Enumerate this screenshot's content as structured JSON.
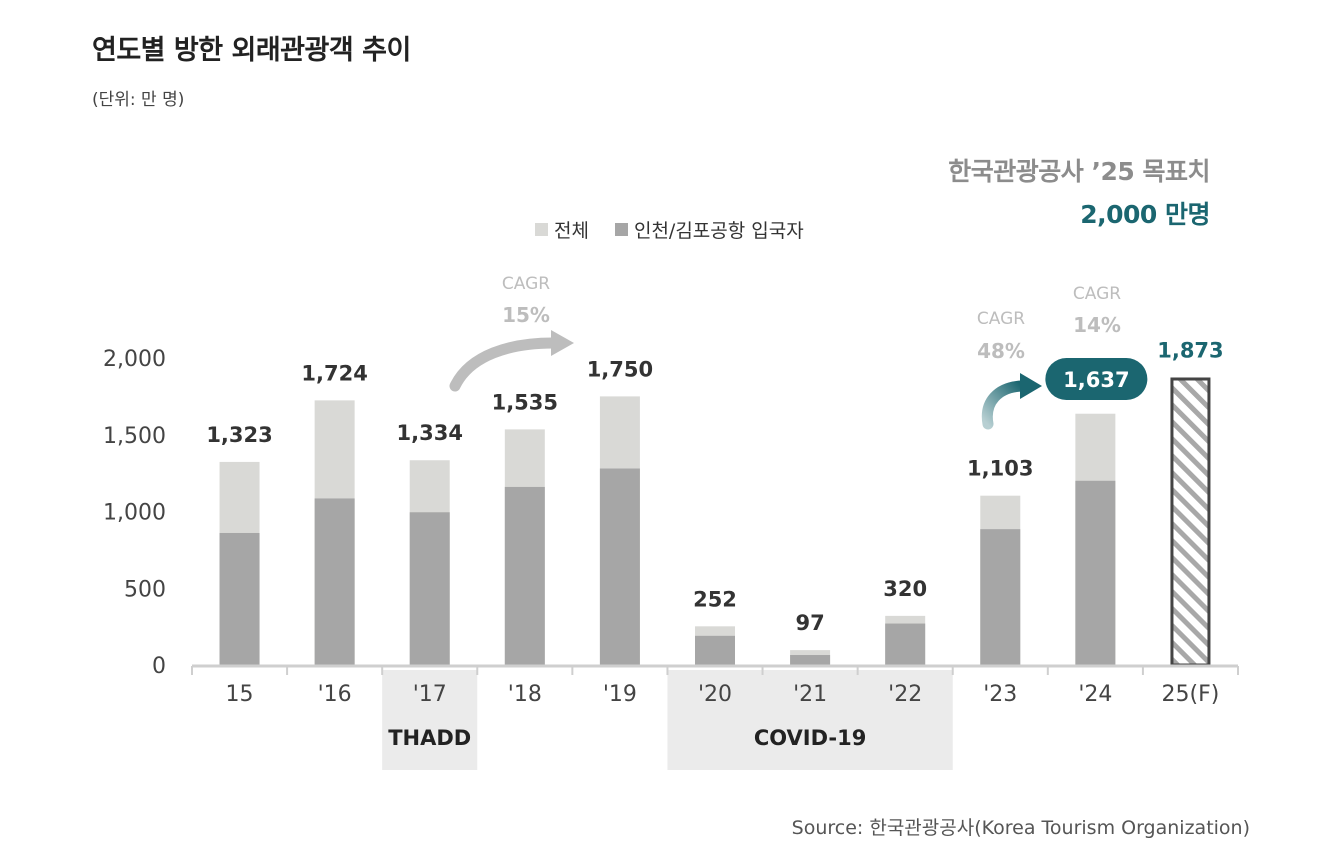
{
  "header": {
    "title": "연도별 방한 외래관광객 추이",
    "unit": "(단위: 만 명)"
  },
  "target": {
    "label": "한국관광공사 ’25 목표치",
    "value": "2,000 만명"
  },
  "source": "Source: 한국관광공사(Korea Tourism Organization)",
  "colors": {
    "total": "#d9d9d6",
    "airport": "#a6a6a6",
    "forecast_stroke": "#444444",
    "highlight": "#1b6670",
    "band": "#ebebeb"
  },
  "chart_data": {
    "type": "bar",
    "ylim": [
      0,
      2000
    ],
    "yticks": [
      "0",
      "500",
      "1,000",
      "1,500",
      "2,000"
    ],
    "categories": [
      "15",
      "'16",
      "'17",
      "'18",
      "'19",
      "'20",
      "'21",
      "'22",
      "'23",
      "'24",
      "25(F)"
    ],
    "series": [
      {
        "name": "전체",
        "values": [
          1323,
          1724,
          1334,
          1535,
          1750,
          252,
          97,
          320,
          1103,
          1637,
          1873
        ]
      },
      {
        "name": "인천/김포공항 입국자",
        "values": [
          860,
          1085,
          995,
          1160,
          1280,
          190,
          65,
          270,
          885,
          1200,
          null
        ]
      }
    ],
    "data_labels": [
      "1,323",
      "1,724",
      "1,334",
      "1,535",
      "1,750",
      "252",
      "97",
      "320",
      "1,103",
      "1,637",
      "1,873"
    ],
    "legend": [
      "전체",
      "인천/김포공항 입국자"
    ],
    "bands": [
      {
        "label": "THADD",
        "from": 2,
        "to": 2
      },
      {
        "label": "COVID-19",
        "from": 5,
        "to": 7
      }
    ],
    "annotations": [
      {
        "title": "CAGR",
        "value": "15%",
        "from": 2,
        "to": 4,
        "color": "#bdbdbd"
      },
      {
        "title": "CAGR",
        "value": "48%",
        "from": 8,
        "to": 9,
        "color": "#1b6670"
      },
      {
        "title": "CAGR",
        "value": "14%",
        "from": 9,
        "to": 10,
        "color": "#1b6670"
      }
    ],
    "target_value": 2000
  }
}
